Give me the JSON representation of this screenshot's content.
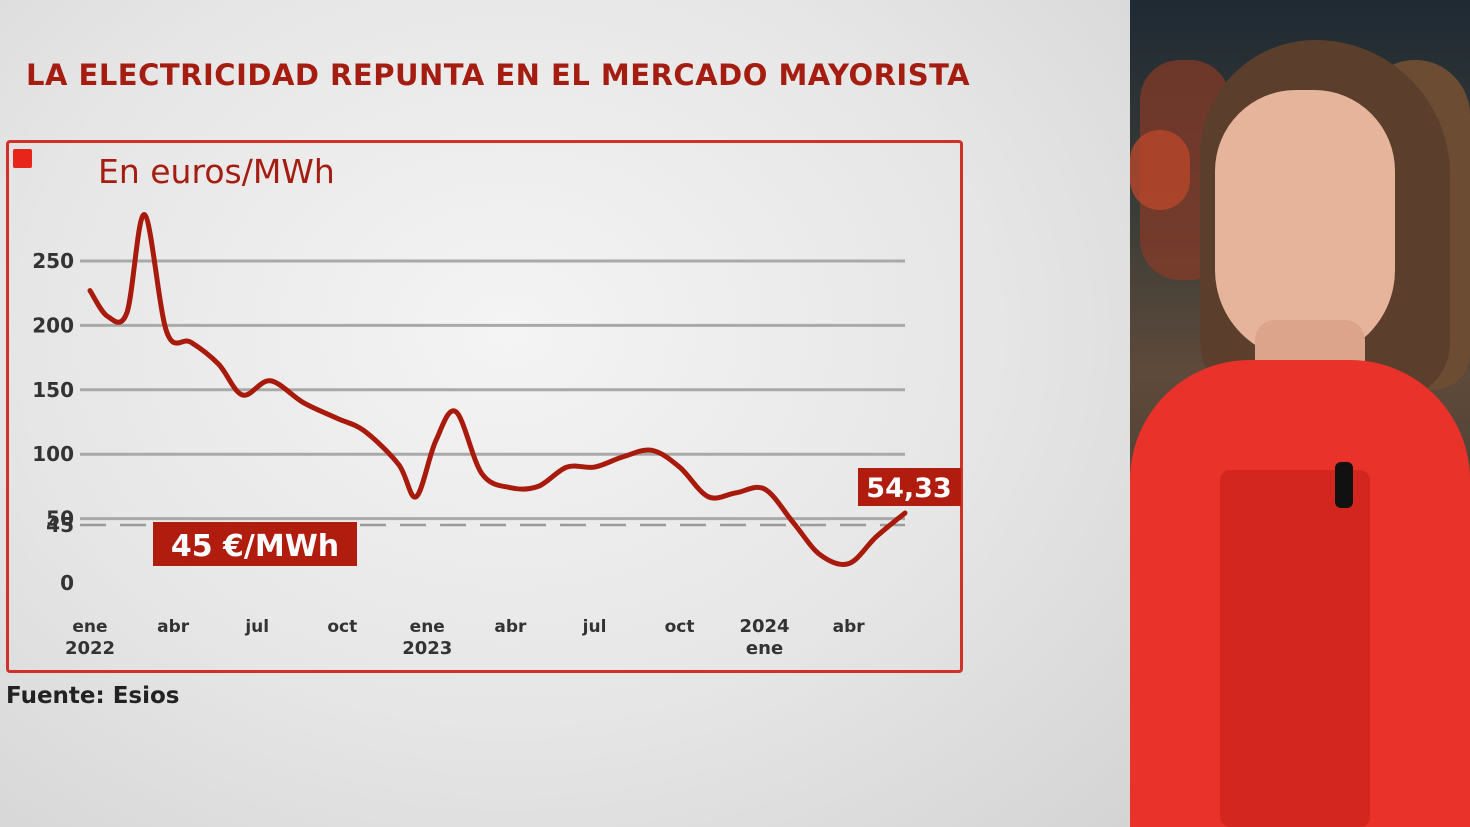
{
  "headline": "LA ELECTRICIDAD REPUNTA EN EL MERCADO MAYORISTA",
  "source": "Fuente: Esios",
  "colors": {
    "accent": "#a41d10",
    "line": "#a81a0c",
    "frame": "#d0322a",
    "label_bg": "#b01d0f"
  },
  "chart_data": {
    "type": "line",
    "ylabel": "En euros/MWh",
    "ylim": [
      0,
      250
    ],
    "y_ticks": [
      "0",
      "45",
      "50",
      "100",
      "150",
      "200",
      "250"
    ],
    "grid": true,
    "x_tick_labels": [
      {
        "month": "ene",
        "year": "2022",
        "x": "2022-01-01"
      },
      {
        "month": "abr",
        "year": "",
        "x": "2022-04-01"
      },
      {
        "month": "jul",
        "year": "",
        "x": "2022-07-01"
      },
      {
        "month": "oct",
        "year": "",
        "x": "2022-10-01"
      },
      {
        "month": "ene",
        "year": "2023",
        "x": "2023-01-01"
      },
      {
        "month": "abr",
        "year": "",
        "x": "2023-04-01"
      },
      {
        "month": "jul",
        "year": "",
        "x": "2023-07-01"
      },
      {
        "month": "oct",
        "year": "",
        "x": "2023-10-01"
      },
      {
        "month": "ene",
        "year": "2024",
        "x": "2024-01-01",
        "year_first": true
      },
      {
        "month": "abr",
        "year": "",
        "x": "2024-04-01"
      }
    ],
    "reference": {
      "value": 45,
      "label": "45 €/MWh"
    },
    "last_value_label": "54,33",
    "series": [
      {
        "name": "",
        "points": [
          [
            "2022-01-01",
            227
          ],
          [
            "2022-01-20",
            207
          ],
          [
            "2022-02-10",
            210
          ],
          [
            "2022-03-01",
            286
          ],
          [
            "2022-03-25",
            195
          ],
          [
            "2022-04-20",
            187
          ],
          [
            "2022-05-20",
            170
          ],
          [
            "2022-06-15",
            146
          ],
          [
            "2022-07-15",
            157
          ],
          [
            "2022-08-20",
            140
          ],
          [
            "2022-09-25",
            128
          ],
          [
            "2022-10-25",
            118
          ],
          [
            "2022-12-01",
            92
          ],
          [
            "2022-12-20",
            67
          ],
          [
            "2023-01-10",
            110
          ],
          [
            "2023-02-01",
            133
          ],
          [
            "2023-03-01",
            85
          ],
          [
            "2023-04-01",
            74
          ],
          [
            "2023-05-01",
            75
          ],
          [
            "2023-06-01",
            90
          ],
          [
            "2023-07-01",
            90
          ],
          [
            "2023-08-01",
            98
          ],
          [
            "2023-09-01",
            103
          ],
          [
            "2023-10-01",
            90
          ],
          [
            "2023-11-01",
            67
          ],
          [
            "2023-12-01",
            70
          ],
          [
            "2024-01-01",
            73
          ],
          [
            "2024-02-01",
            47
          ],
          [
            "2024-03-01",
            22
          ],
          [
            "2024-04-01",
            15
          ],
          [
            "2024-05-01",
            36
          ],
          [
            "2024-06-01",
            54.33
          ]
        ]
      }
    ]
  }
}
